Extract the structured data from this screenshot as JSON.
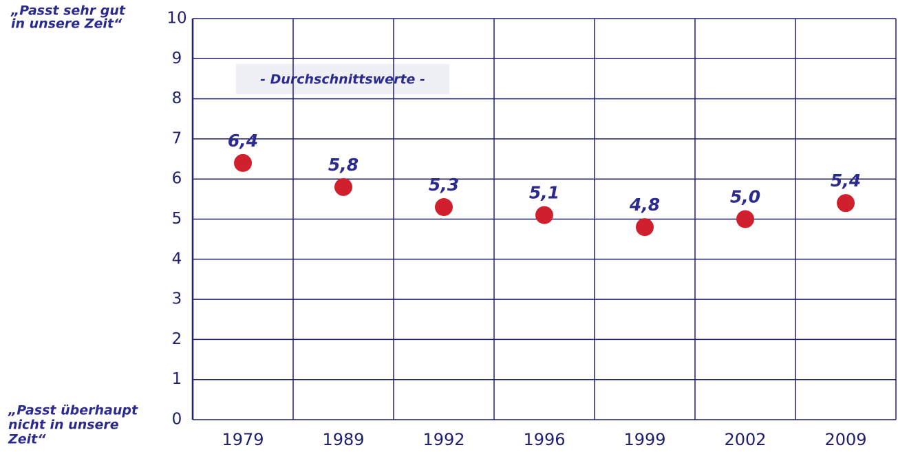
{
  "chart_data": {
    "type": "scatter",
    "subtitle": "- Durchschnittswerte -",
    "y_top_label": [
      "„Passt sehr gut",
      "in unsere Zeit“"
    ],
    "y_bottom_label": [
      "„Passt überhaupt",
      "nicht in unsere",
      "Zeit“"
    ],
    "categories": [
      "1979",
      "1989",
      "1992",
      "1996",
      "1999",
      "2002",
      "2009"
    ],
    "values": [
      6.4,
      5.8,
      5.3,
      5.1,
      4.8,
      5.0,
      5.4
    ],
    "value_labels": [
      "6,4",
      "5,8",
      "5,3",
      "5,1",
      "4,8",
      "5,0",
      "5,4"
    ],
    "color": "#d0202e",
    "ylim": [
      0,
      10
    ],
    "yticks": [
      0,
      1,
      2,
      3,
      4,
      5,
      6,
      7,
      8,
      9,
      10
    ],
    "grid": true
  }
}
